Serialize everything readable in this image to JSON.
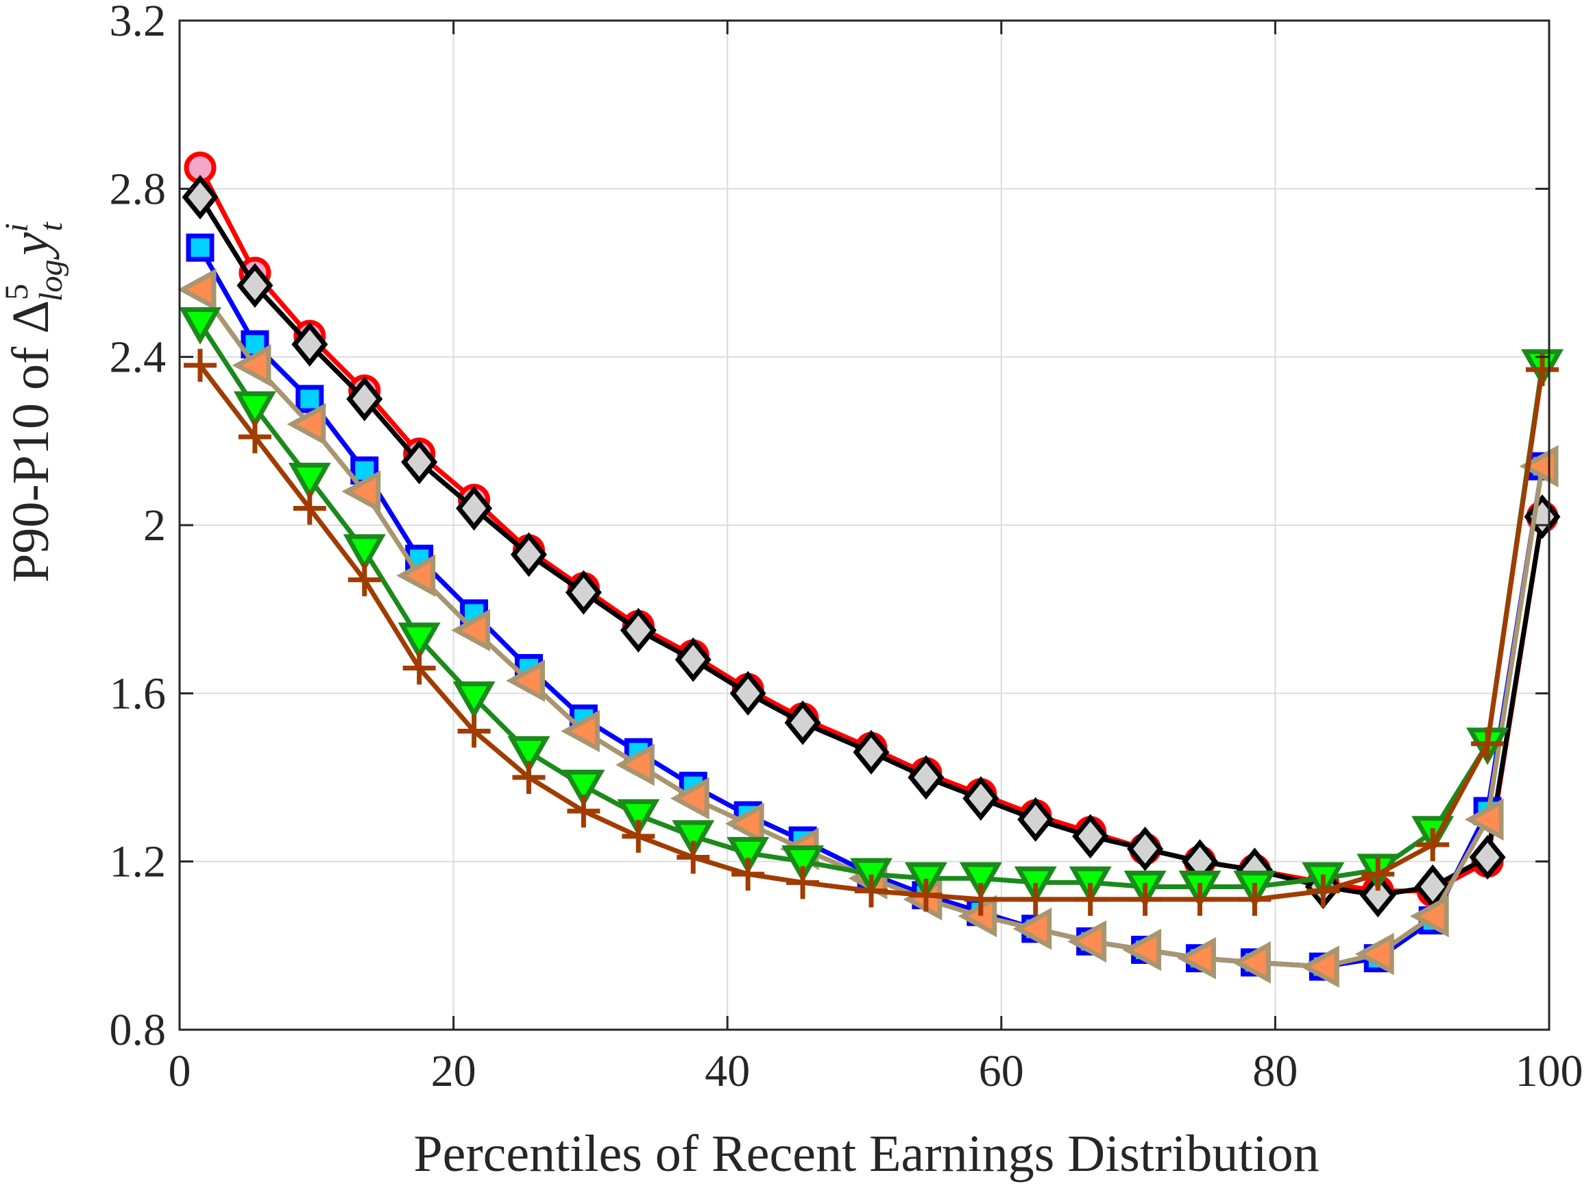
{
  "chart_data": {
    "type": "line",
    "title": "",
    "xlabel": "Percentiles of Recent Earnings Distribution",
    "ylabel": {
      "prefix": "P90-P10 of Δ",
      "sup": "5",
      "sub": "log",
      "var": "y",
      "var_sup": "i",
      "var_sub": "t"
    },
    "xlim": [
      0,
      100
    ],
    "ylim": [
      0.8,
      3.2
    ],
    "xticks": [
      0,
      20,
      40,
      60,
      80,
      100
    ],
    "xtick_labels": [
      "0",
      "20",
      "40",
      "60",
      "80",
      "100"
    ],
    "yticks": [
      0.8,
      1.2,
      1.6,
      2.0,
      2.4,
      2.8,
      3.2
    ],
    "ytick_labels": [
      "0.8",
      "1.2",
      "1.6",
      "2",
      "2.4",
      "2.8",
      "3.2"
    ],
    "grid": true,
    "x": [
      1.5,
      5.5,
      9.5,
      13.5,
      17.5,
      21.5,
      25.5,
      29.5,
      33.5,
      37.5,
      41.5,
      45.5,
      50.5,
      54.5,
      58.5,
      62.5,
      66.5,
      70.5,
      74.5,
      78.5,
      83.5,
      87.5,
      91.5,
      95.5,
      99.5
    ],
    "series": [
      {
        "name": "circle-series",
        "marker": "circle",
        "line_color": "#ff0000",
        "marker_fill": "#f4a6c8",
        "marker_edge": "#ff0000",
        "values": [
          2.85,
          2.6,
          2.45,
          2.32,
          2.17,
          2.06,
          1.94,
          1.85,
          1.76,
          1.69,
          1.61,
          1.54,
          1.47,
          1.41,
          1.36,
          1.31,
          1.27,
          1.23,
          1.2,
          1.18,
          1.15,
          1.13,
          1.13,
          1.2,
          2.02
        ]
      },
      {
        "name": "diamond-series",
        "marker": "diamond",
        "line_color": "#000000",
        "marker_fill": "#d3d3d3",
        "marker_edge": "#000000",
        "values": [
          2.78,
          2.57,
          2.43,
          2.3,
          2.15,
          2.04,
          1.93,
          1.84,
          1.75,
          1.68,
          1.6,
          1.53,
          1.46,
          1.4,
          1.35,
          1.3,
          1.26,
          1.23,
          1.2,
          1.18,
          1.14,
          1.12,
          1.14,
          1.21,
          2.02
        ]
      },
      {
        "name": "square-series",
        "marker": "square",
        "line_color": "#0000ff",
        "marker_fill": "#00d2ff",
        "marker_edge": "#0000ff",
        "values": [
          2.66,
          2.43,
          2.3,
          2.13,
          1.92,
          1.79,
          1.66,
          1.54,
          1.46,
          1.38,
          1.31,
          1.25,
          1.17,
          1.12,
          1.08,
          1.04,
          1.01,
          0.99,
          0.97,
          0.96,
          0.95,
          0.97,
          1.06,
          1.32,
          2.14
        ]
      },
      {
        "name": "left-triangle-series",
        "marker": "triangle-left",
        "line_color": "#a89670",
        "marker_fill": "#ff8c50",
        "marker_edge": "#a89670",
        "values": [
          2.56,
          2.38,
          2.24,
          2.08,
          1.88,
          1.75,
          1.63,
          1.51,
          1.43,
          1.35,
          1.29,
          1.23,
          1.16,
          1.11,
          1.07,
          1.04,
          1.01,
          0.99,
          0.97,
          0.96,
          0.95,
          0.98,
          1.07,
          1.3,
          2.14
        ]
      },
      {
        "name": "down-triangle-series",
        "marker": "triangle-down",
        "line_color": "#1a8a1a",
        "marker_fill": "#00ff00",
        "marker_edge": "#1a8a1a",
        "values": [
          2.48,
          2.28,
          2.11,
          1.94,
          1.73,
          1.59,
          1.46,
          1.38,
          1.31,
          1.26,
          1.22,
          1.2,
          1.17,
          1.16,
          1.16,
          1.15,
          1.15,
          1.14,
          1.14,
          1.14,
          1.16,
          1.18,
          1.27,
          1.48,
          2.38
        ]
      },
      {
        "name": "plus-series",
        "marker": "plus",
        "line_color": "#a03c00",
        "marker_fill": "none",
        "marker_edge": "#a03c00",
        "values": [
          2.38,
          2.21,
          2.04,
          1.87,
          1.66,
          1.51,
          1.4,
          1.32,
          1.26,
          1.21,
          1.17,
          1.15,
          1.13,
          1.12,
          1.11,
          1.11,
          1.11,
          1.11,
          1.11,
          1.11,
          1.13,
          1.17,
          1.24,
          1.48,
          2.37
        ]
      }
    ]
  }
}
